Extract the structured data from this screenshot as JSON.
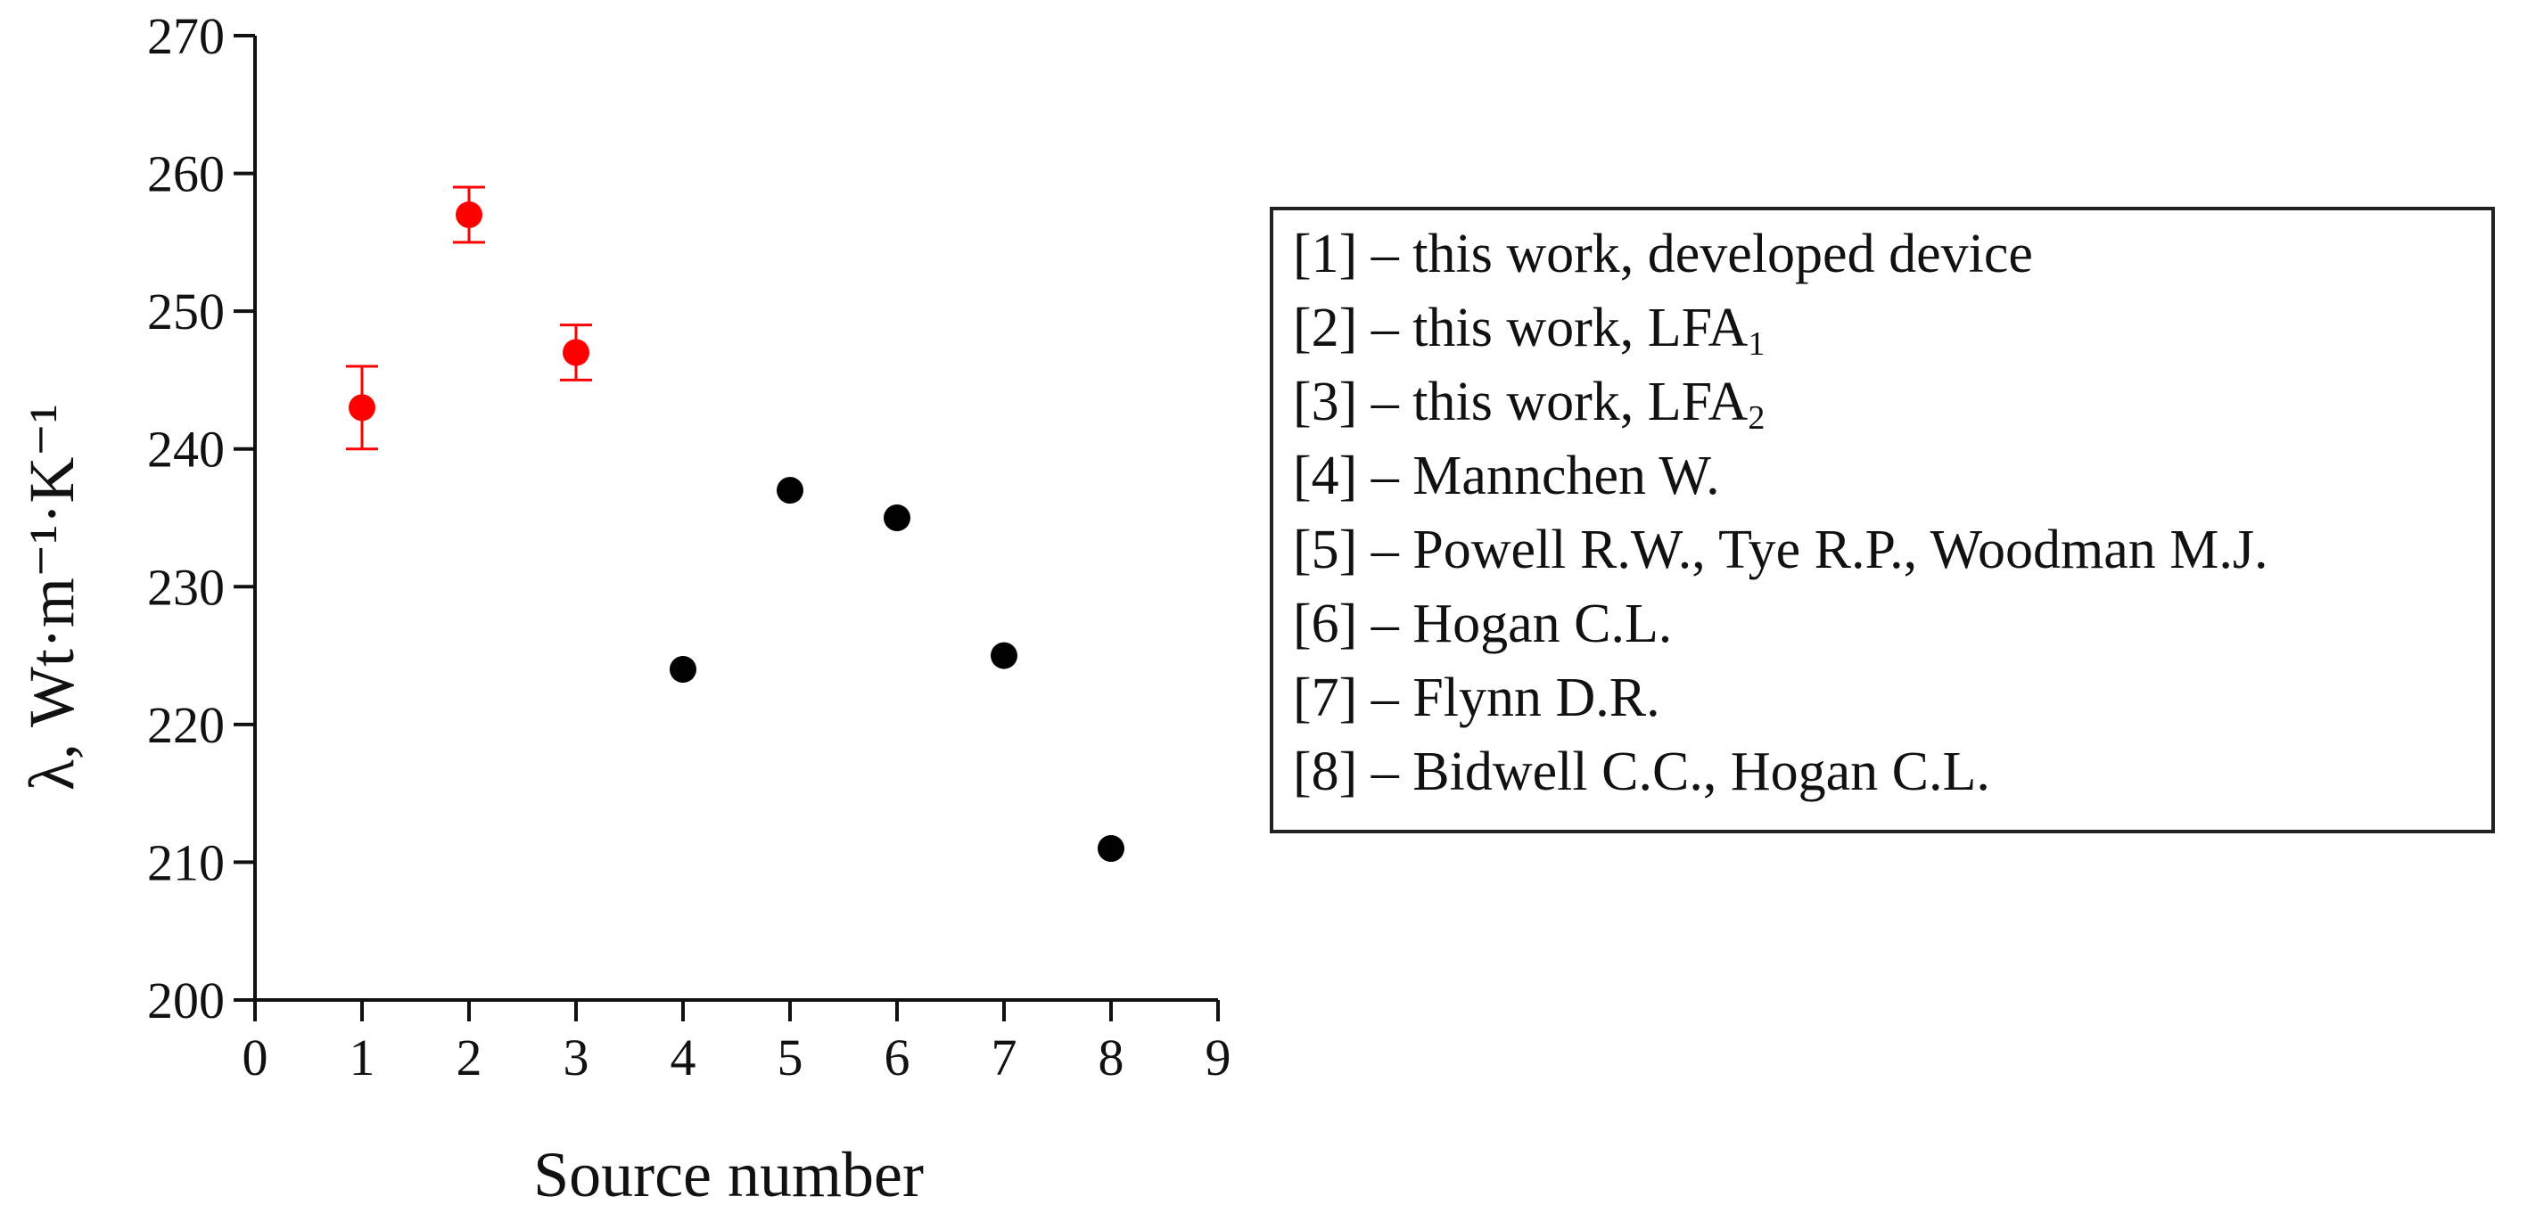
{
  "chart_data": {
    "type": "scatter",
    "xlabel": "Source number",
    "ylabel": "λ, Wt·m⁻¹·K⁻¹",
    "xlim": [
      0,
      9
    ],
    "ylim": [
      200,
      270
    ],
    "x_ticks": [
      "0",
      "1",
      "2",
      "3",
      "4",
      "5",
      "6",
      "7",
      "8",
      "9"
    ],
    "y_ticks": [
      "200",
      "210",
      "220",
      "230",
      "240",
      "250",
      "260",
      "270"
    ],
    "grid": false,
    "legend_position": "right",
    "series": [
      {
        "color": "#ff0000",
        "points": [
          {
            "x": 1,
            "y": 243,
            "err_low": 240,
            "err_high": 246
          },
          {
            "x": 2,
            "y": 257,
            "err_low": 255,
            "err_high": 259
          },
          {
            "x": 3,
            "y": 247,
            "err_low": 245,
            "err_high": 249
          }
        ]
      },
      {
        "color": "#000000",
        "points": [
          {
            "x": 4,
            "y": 224
          },
          {
            "x": 5,
            "y": 237
          },
          {
            "x": 6,
            "y": 235
          },
          {
            "x": 7,
            "y": 225
          },
          {
            "x": 8,
            "y": 211
          }
        ]
      }
    ]
  },
  "legend": {
    "entries": [
      {
        "text": "[1] – this work, developed device"
      },
      {
        "text": "[2] – this work, LFA",
        "sub": "1"
      },
      {
        "text": "[3] – this work, LFA",
        "sub": "2"
      },
      {
        "text": "[4] – Mannchen W."
      },
      {
        "text": "[5] – Powell R.W., Tye R.P., Woodman M.J."
      },
      {
        "text": "[6] – Hogan C.L."
      },
      {
        "text": "[7] – Flynn D.R."
      },
      {
        "text": "[8] – Bidwell C.C., Hogan C.L."
      }
    ]
  }
}
